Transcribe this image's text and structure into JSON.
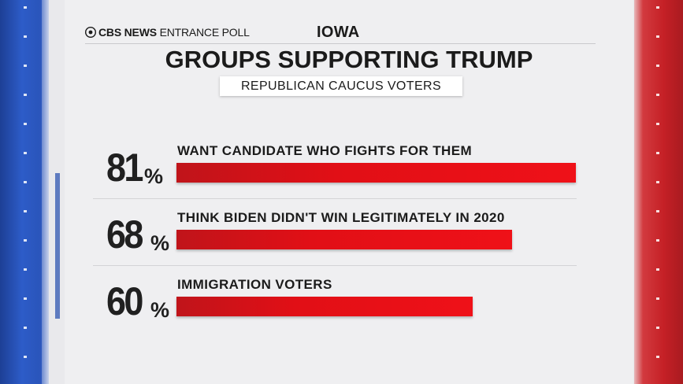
{
  "header": {
    "brand_network": "CBS NEWS",
    "brand_product": "ENTRANCE POLL",
    "region": "IOWA"
  },
  "title": "GROUPS SUPPORTING TRUMP",
  "subtitle": "REPUBLICAN CAUCUS VOTERS",
  "colors": {
    "bar": "#e10f16",
    "left_panel": "#2a55bb",
    "right_panel": "#c52026"
  },
  "chart_data": {
    "type": "bar",
    "orientation": "horizontal",
    "title": "GROUPS SUPPORTING TRUMP",
    "subtitle": "REPUBLICAN CAUCUS VOTERS",
    "unit": "%",
    "categories": [
      "WANT CANDIDATE WHO FIGHTS FOR THEM",
      "THINK BIDEN DIDN'T WIN LEGITIMATELY IN 2020",
      "IMMIGRATION VOTERS"
    ],
    "values": [
      81,
      68,
      60
    ],
    "value_labels": [
      "81",
      "68",
      "60"
    ],
    "xlim": [
      0,
      100
    ]
  }
}
